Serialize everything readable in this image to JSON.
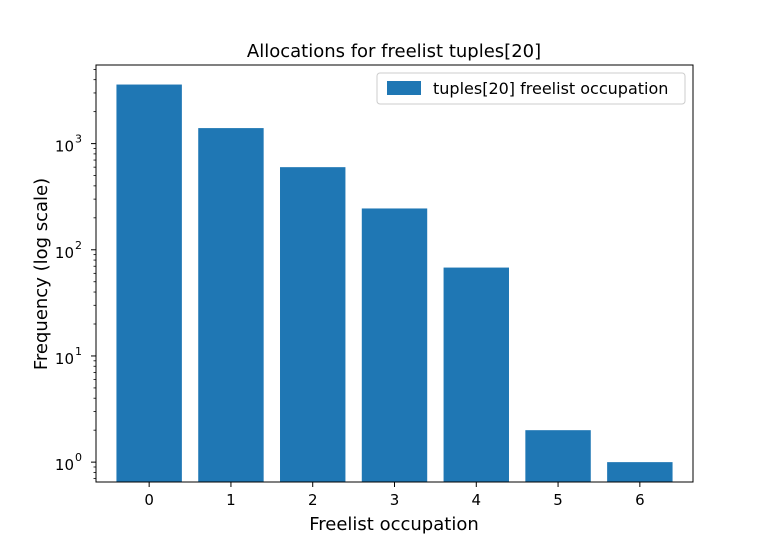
{
  "chart_data": {
    "type": "bar",
    "title": "Allocations for freelist tuples[20]",
    "xlabel": "Freelist occupation",
    "ylabel": "Frequency (log scale)",
    "yscale": "log",
    "ylim": [
      0.65,
      5500
    ],
    "categories": [
      "0",
      "1",
      "2",
      "3",
      "4",
      "5",
      "6"
    ],
    "series": [
      {
        "name": "tuples[20] freelist occupation",
        "values": [
          3600,
          1400,
          600,
          245,
          68,
          2,
          1
        ],
        "color": "#1f77b4"
      }
    ],
    "y_tick_labels": [
      {
        "base": "10",
        "exp": "0"
      },
      {
        "base": "10",
        "exp": "1"
      },
      {
        "base": "10",
        "exp": "2"
      },
      {
        "base": "10",
        "exp": "3"
      }
    ],
    "grid": false,
    "legend_position": "top-right"
  }
}
